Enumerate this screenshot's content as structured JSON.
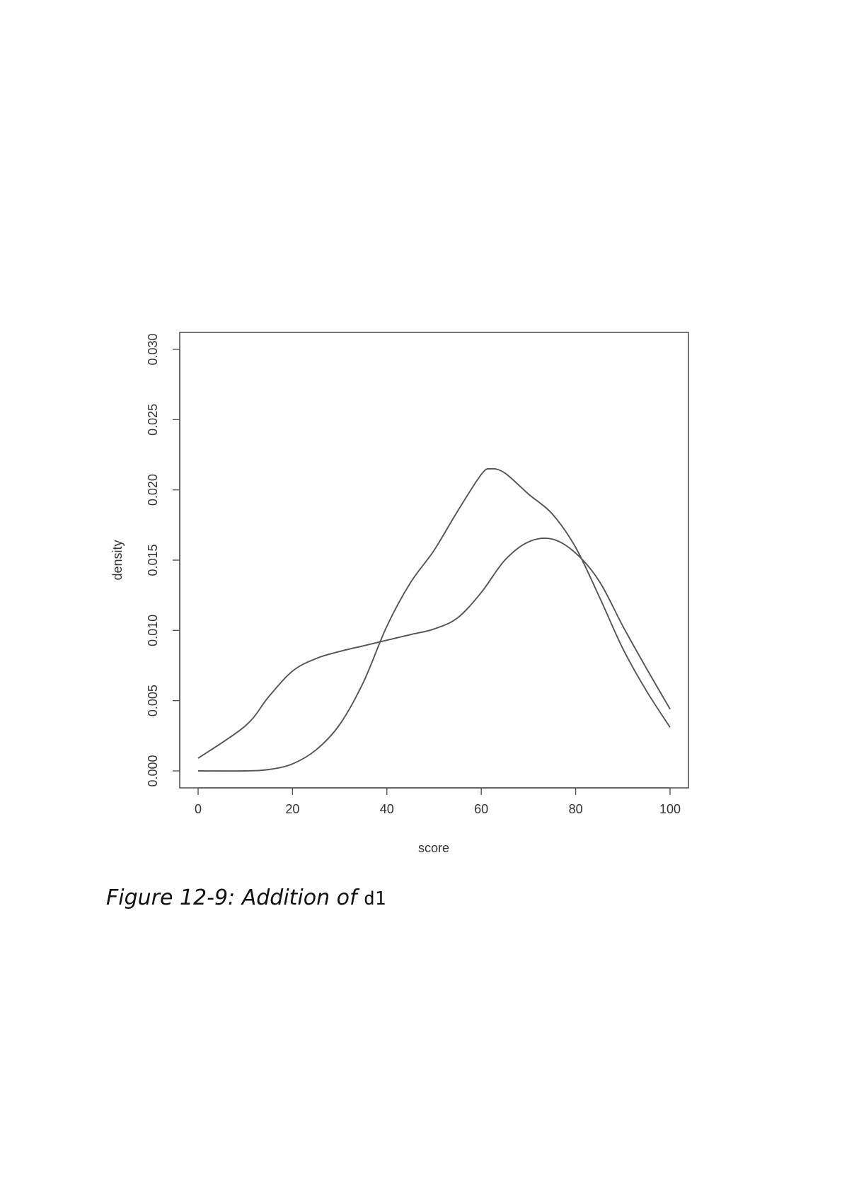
{
  "chart_data": {
    "type": "line",
    "title": "",
    "xlabel": "score",
    "ylabel": "density",
    "xlim": [
      0,
      100
    ],
    "ylim": [
      0,
      0.03
    ],
    "xticks": [
      "0",
      "20",
      "40",
      "60",
      "80",
      "100"
    ],
    "yticks": [
      "0.000",
      "0.005",
      "0.010",
      "0.015",
      "0.020",
      "0.025",
      "0.030"
    ],
    "grid": false,
    "line_color": "#555555",
    "series": [
      {
        "x": [
          0,
          10,
          15,
          20,
          25,
          30,
          35,
          40,
          45,
          50,
          55,
          60,
          65,
          70,
          75,
          80,
          85,
          90,
          95,
          100
        ],
        "values": [
          0.0009,
          0.0032,
          0.0053,
          0.0071,
          0.008,
          0.0085,
          0.0089,
          0.0093,
          0.0097,
          0.0101,
          0.0109,
          0.0127,
          0.015,
          0.0163,
          0.0165,
          0.0155,
          0.0135,
          0.0103,
          0.0073,
          0.0044
        ]
      },
      {
        "x": [
          0,
          10,
          15,
          20,
          25,
          30,
          35,
          40,
          45,
          50,
          55,
          60,
          62,
          65,
          70,
          75,
          80,
          85,
          90,
          95,
          100
        ],
        "values": [
          0.0,
          0.0,
          0.0001,
          0.0005,
          0.0015,
          0.0033,
          0.0063,
          0.0103,
          0.0134,
          0.0157,
          0.0185,
          0.0211,
          0.0215,
          0.0212,
          0.0197,
          0.0183,
          0.0159,
          0.0124,
          0.0087,
          0.0057,
          0.0031
        ]
      }
    ]
  },
  "caption": {
    "text": "Figure 12-9: Addition of ",
    "code": "d1"
  }
}
